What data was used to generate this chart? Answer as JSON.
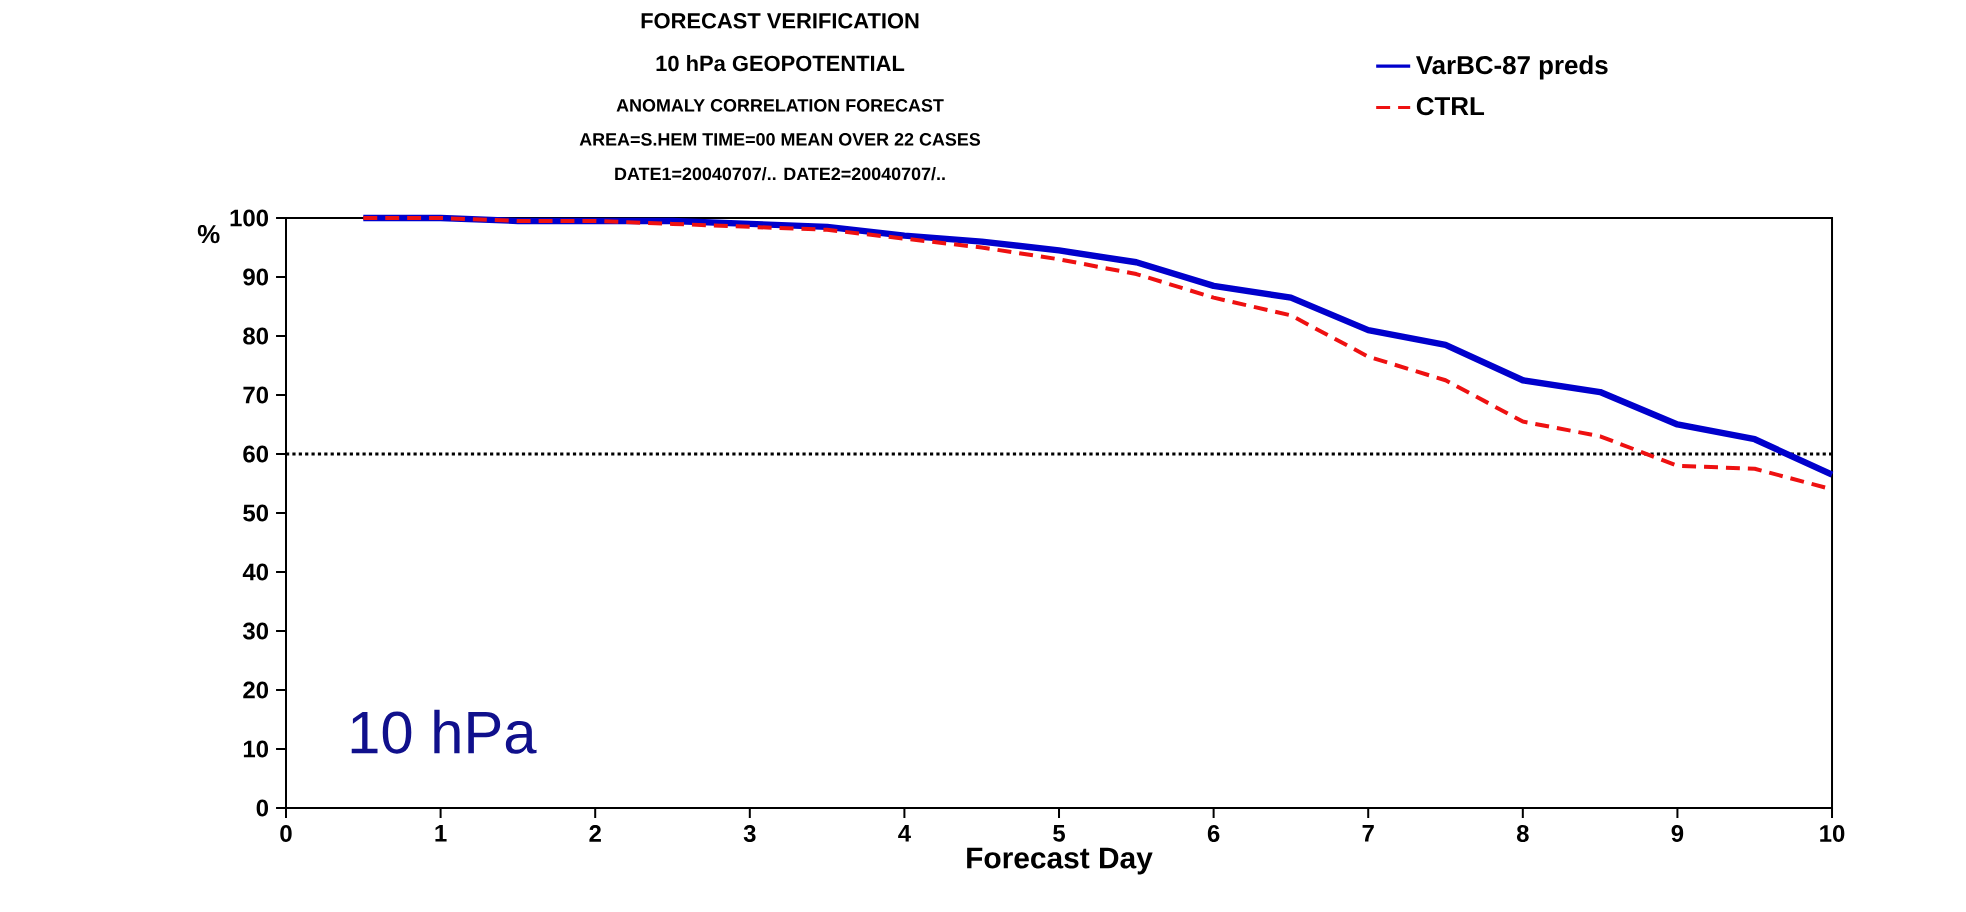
{
  "chart_data": {
    "type": "line",
    "title": "FORECAST VERIFICATION",
    "subtitle": "10 hPa GEOPOTENTIAL",
    "xlabel": "Forecast Day",
    "ylabel": "%",
    "annotations": [
      "ANOMALY CORRELATION          FORECAST",
      "AREA=S.HEM   TIME=00   MEAN OVER 22 CASES",
      "DATE1=20040707/.. DATE2=20040707/..",
      "10 hPa"
    ],
    "x": [
      0.5,
      1,
      1.5,
      2,
      2.5,
      3,
      3.5,
      4,
      4.5,
      5,
      5.5,
      6,
      6.5,
      7,
      7.5,
      8,
      8.5,
      9,
      9.5,
      10
    ],
    "series": [
      {
        "name": "VarBC-87 preds",
        "color": "#0000cc",
        "line_style": "solid",
        "values": [
          100,
          100,
          99.5,
          99.5,
          99.5,
          99,
          98.5,
          97,
          96,
          94.5,
          92.5,
          88.5,
          86.5,
          81,
          78.5,
          72.5,
          70.5,
          65,
          62.5,
          56.5
        ]
      },
      {
        "name": "CTRL",
        "color": "#ee1111",
        "line_style": "dashed",
        "values": [
          100,
          100,
          99.5,
          99.5,
          99,
          98.5,
          98,
          96.5,
          95,
          93,
          90.5,
          86.5,
          83.5,
          76.5,
          72.5,
          65.5,
          63,
          58,
          57.5,
          54
        ]
      }
    ],
    "xlim": [
      0,
      10
    ],
    "xticks": [
      0,
      1,
      2,
      3,
      4,
      5,
      6,
      7,
      8,
      9,
      10
    ],
    "ylim": [
      0,
      100
    ],
    "yticks": [
      0,
      10,
      20,
      30,
      40,
      50,
      60,
      70,
      80,
      90,
      100
    ],
    "ref_lines": [
      {
        "axis": "y",
        "value": 60,
        "color": "#000000",
        "line_style": "dotted"
      }
    ],
    "legend": "top right"
  }
}
